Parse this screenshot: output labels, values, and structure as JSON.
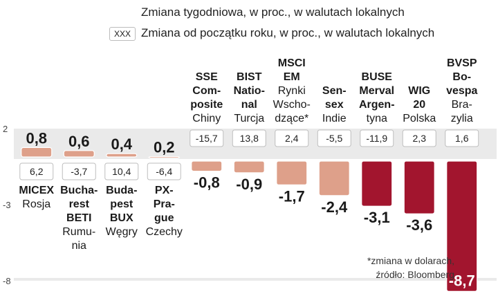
{
  "legend": {
    "weekly": "Zmiana tygodniowa, w proc., w walutach lokalnych",
    "ytd_marker": "XXX",
    "ytd": "Zmiana od początku roku, w proc., w walutach lokalnych"
  },
  "footnote": {
    "line1": "*zmiana w dolarach,",
    "line2": "źródło: Bloomberg"
  },
  "chart_data": {
    "type": "bar",
    "ylim": [
      -8,
      2
    ],
    "yticks": [
      2,
      -3,
      -8
    ],
    "ytick_labels": [
      "2",
      "-3",
      "-8"
    ],
    "categories": [
      {
        "label": [
          "MICEX",
          "Rosja"
        ],
        "weekly": 0.8,
        "weekly_label": "0,8",
        "ytd": "6,2"
      },
      {
        "label": [
          "Bucha-",
          "rest",
          "BETI",
          "Rumu-",
          "nia"
        ],
        "weekly": 0.6,
        "weekly_label": "0,6",
        "ytd": "-3,7"
      },
      {
        "label": [
          "Buda-",
          "pest",
          "BUX",
          "Węgry"
        ],
        "weekly": 0.4,
        "weekly_label": "0,4",
        "ytd": "10,4"
      },
      {
        "label": [
          "PX-",
          "Pra-",
          "gue",
          "Czechy"
        ],
        "weekly": 0.2,
        "weekly_label": "0,2",
        "ytd": "-6,4"
      },
      {
        "label": [
          "SSE",
          "Com-",
          "posite",
          "Chiny"
        ],
        "weekly": -0.8,
        "weekly_label": "-0,8",
        "ytd": "-15,7"
      },
      {
        "label": [
          "BIST",
          "Natio-",
          "nal",
          "Turcja"
        ],
        "weekly": -0.9,
        "weekly_label": "-0,9",
        "ytd": "13,8"
      },
      {
        "label": [
          "MSCI",
          "EM",
          "Rynki",
          "Wscho-",
          "dzące*"
        ],
        "weekly": -1.7,
        "weekly_label": "-1,7",
        "ytd": "2,4"
      },
      {
        "label": [
          "Sen-",
          "sex",
          "Indie"
        ],
        "weekly": -2.4,
        "weekly_label": "-2,4",
        "ytd": "-5,5"
      },
      {
        "label": [
          "BUSE",
          "Merval",
          "Argen-",
          "tyna"
        ],
        "weekly": -3.1,
        "weekly_label": "-3,1",
        "ytd": "-11,9"
      },
      {
        "label": [
          "WIG",
          "20",
          "Polska"
        ],
        "weekly": -3.6,
        "weekly_label": "-3,6",
        "ytd": "2,3"
      },
      {
        "label": [
          "BVSP",
          "Bo-",
          "vespa",
          "Bra-",
          "zylia"
        ],
        "weekly": -8.7,
        "weekly_label": "-8,7",
        "ytd": "1,6"
      }
    ],
    "colors": {
      "light": "#dea08a",
      "dark": "#a2152e",
      "band": "#eaeaea"
    }
  }
}
